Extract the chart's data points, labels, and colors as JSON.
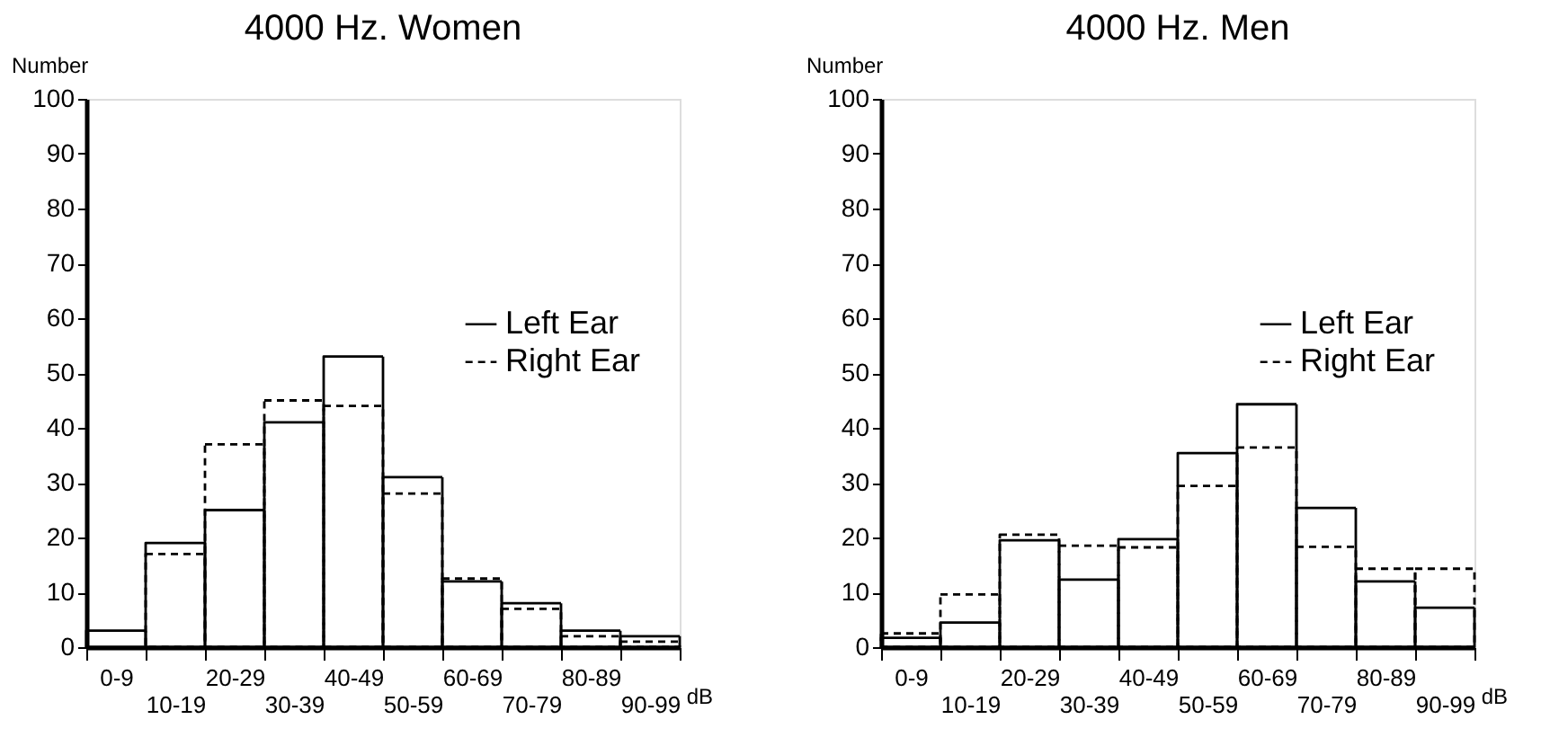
{
  "chart_data": [
    {
      "type": "bar",
      "title": "4000 Hz. Women",
      "xlabel": "dB",
      "ylabel": "Number",
      "categories": [
        "0-9",
        "10-19",
        "20-29",
        "30-39",
        "40-49",
        "50-59",
        "60-69",
        "70-79",
        "80-89",
        "90-99"
      ],
      "ylim": [
        0,
        100
      ],
      "yticks": [
        0,
        10,
        20,
        30,
        40,
        50,
        60,
        70,
        80,
        90,
        100
      ],
      "grid": false,
      "legend": "right",
      "series": [
        {
          "name": "Left Ear",
          "color": "#000000",
          "line_style": "solid",
          "values": [
            3,
            19,
            25,
            41,
            53,
            31,
            12,
            8,
            3,
            2
          ]
        },
        {
          "name": "Right Ear",
          "color": "#000000",
          "line_style": "dashed",
          "values": [
            null,
            17,
            37,
            45,
            44,
            28,
            12.5,
            7,
            2,
            1
          ]
        }
      ]
    },
    {
      "type": "bar",
      "title": "4000 Hz. Men",
      "xlabel": "dB",
      "ylabel": "Number",
      "categories": [
        "0-9",
        "10-19",
        "20-29",
        "30-39",
        "40-49",
        "50-59",
        "60-69",
        "70-79",
        "80-89",
        "90-99"
      ],
      "ylim": [
        0,
        100
      ],
      "yticks": [
        0,
        10,
        20,
        30,
        40,
        50,
        60,
        70,
        80,
        90,
        100
      ],
      "grid": false,
      "legend": "right",
      "series": [
        {
          "name": "Left Ear",
          "color": "#000000",
          "line_style": "solid",
          "values": [
            1.7,
            4.5,
            19.5,
            12.3,
            19.7,
            35.4,
            44.3,
            25.4,
            12,
            7.2
          ]
        },
        {
          "name": "Right Ear",
          "color": "#000000",
          "line_style": "dashed",
          "values": [
            2.5,
            9.6,
            20.5,
            18.5,
            18.2,
            29.4,
            36.4,
            18.3,
            14.3,
            14.3
          ]
        }
      ]
    }
  ]
}
